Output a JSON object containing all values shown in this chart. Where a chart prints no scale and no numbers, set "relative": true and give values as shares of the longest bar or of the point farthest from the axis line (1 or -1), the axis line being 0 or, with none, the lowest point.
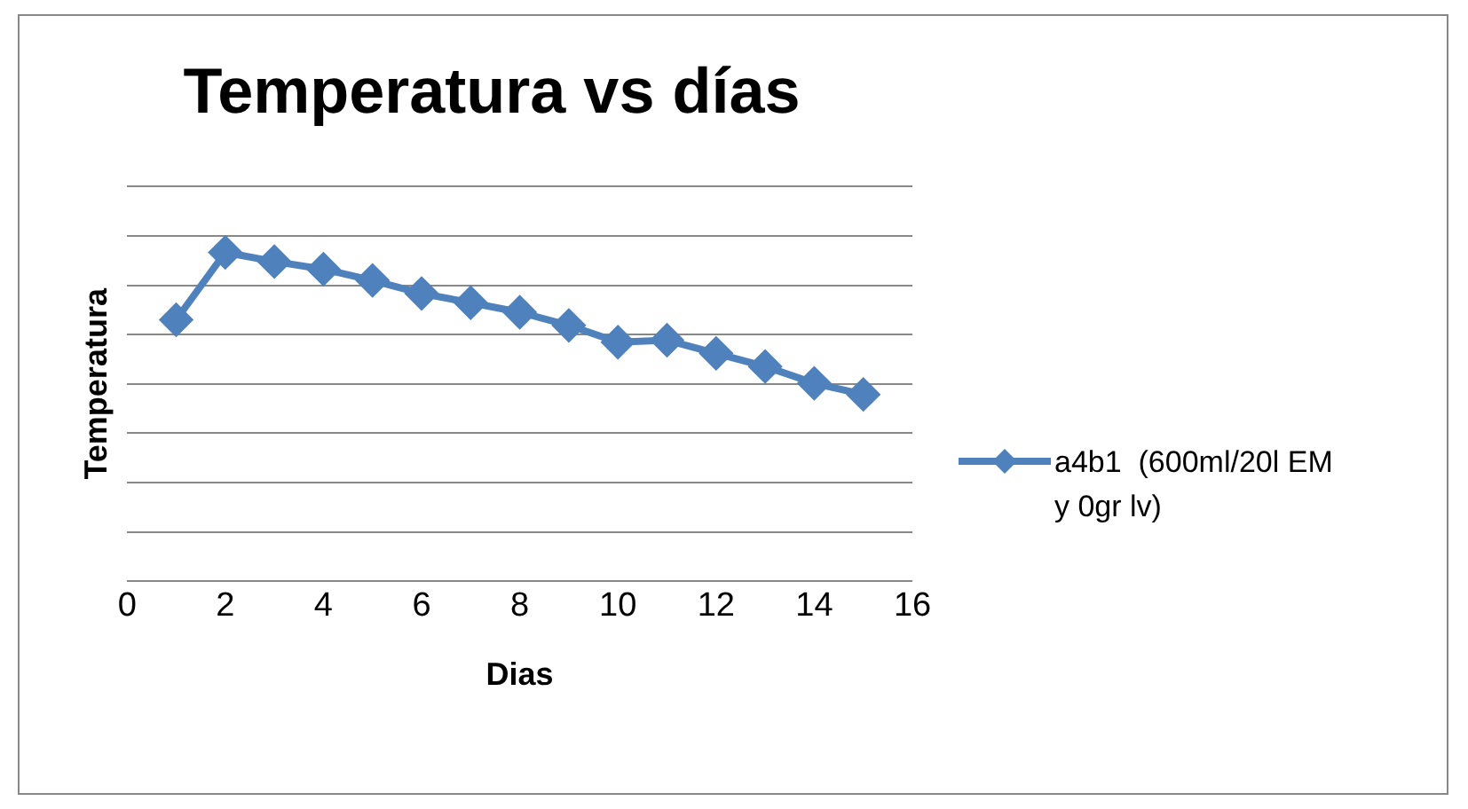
{
  "chart_data": {
    "type": "line",
    "title": "Temperatura vs días",
    "xlabel": "Dias",
    "ylabel": "Temperatura",
    "relative": true,
    "xlim": [
      0,
      16
    ],
    "xticks": [
      0,
      2,
      4,
      6,
      8,
      10,
      12,
      14,
      16
    ],
    "grid": "y",
    "legend": "right",
    "marker": "diamond",
    "line_style": "solid",
    "series": [
      {
        "name": "a4b1  (600ml/20l EM y 0gr lv)",
        "color": "#4f81bd",
        "x": [
          1,
          2,
          3,
          4,
          5,
          6,
          7,
          8,
          9,
          10,
          11,
          12,
          13,
          14,
          15
        ],
        "values": [
          0.795,
          1,
          0.972,
          0.949,
          0.915,
          0.875,
          0.847,
          0.818,
          0.778,
          0.727,
          0.733,
          0.693,
          0.653,
          0.602,
          0.568
        ]
      }
    ]
  }
}
